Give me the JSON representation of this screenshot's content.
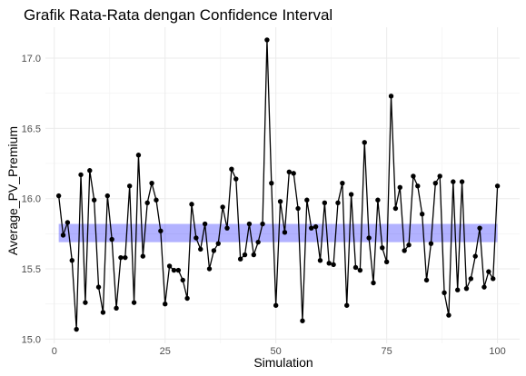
{
  "chart_data": {
    "type": "line",
    "title": "Grafik Rata-Rata dengan Confidence Interval",
    "xlabel": "Simulation",
    "ylabel": "Average_PV_Premium",
    "xlim": [
      -2,
      105
    ],
    "ylim": [
      14.97,
      17.22
    ],
    "x_ticks": [
      0,
      25,
      50,
      75,
      100
    ],
    "x_tick_labels": [
      "0",
      "25",
      "50",
      "75",
      "100"
    ],
    "y_ticks": [
      15.0,
      15.5,
      16.0,
      16.5,
      17.0
    ],
    "y_tick_labels": [
      "15.0",
      "15.5",
      "16.0",
      "16.5",
      "17.0"
    ],
    "grid": true,
    "confidence_interval": {
      "x_start": 1,
      "x_end": 100,
      "lower": 15.69,
      "upper": 15.82,
      "color": "#0000ff",
      "opacity": 0.3
    },
    "line_color": "#000000",
    "point_color": "#000000",
    "series": [
      {
        "x": [
          1,
          2,
          3,
          4,
          5,
          6,
          7,
          8,
          9,
          10,
          11,
          12,
          13,
          14,
          15,
          16,
          17,
          18,
          19,
          20,
          21,
          22,
          23,
          24,
          25,
          26,
          27,
          28,
          29,
          30,
          31,
          32,
          33,
          34,
          35,
          36,
          37,
          38,
          39,
          40,
          41,
          42,
          43,
          44,
          45,
          46,
          47,
          48,
          49,
          50,
          51,
          52,
          53,
          54,
          55,
          56,
          57,
          58,
          59,
          60,
          61,
          62,
          63,
          64,
          65,
          66,
          67,
          68,
          69,
          70,
          71,
          72,
          73,
          74,
          75,
          76,
          77,
          78,
          79,
          80,
          81,
          82,
          83,
          84,
          85,
          86,
          87,
          88,
          89,
          90,
          91,
          92,
          93,
          94,
          95,
          96,
          97,
          98,
          99,
          100
        ],
        "values": [
          16.02,
          15.74,
          15.83,
          15.56,
          15.07,
          16.17,
          15.26,
          16.2,
          15.99,
          15.37,
          15.19,
          16.02,
          15.71,
          15.22,
          15.58,
          15.58,
          16.09,
          15.26,
          16.31,
          15.59,
          15.97,
          16.11,
          15.99,
          15.77,
          15.25,
          15.52,
          15.49,
          15.49,
          15.42,
          15.29,
          15.96,
          15.72,
          15.64,
          15.82,
          15.5,
          15.63,
          15.68,
          15.94,
          15.79,
          16.21,
          16.14,
          15.57,
          15.6,
          15.82,
          15.6,
          15.69,
          15.82,
          17.13,
          16.11,
          15.24,
          15.98,
          15.76,
          16.19,
          16.18,
          15.93,
          15.13,
          15.99,
          15.79,
          15.8,
          15.56,
          15.97,
          15.54,
          15.53,
          15.97,
          16.11,
          15.24,
          16.03,
          15.51,
          15.49,
          16.4,
          15.72,
          15.4,
          15.99,
          15.65,
          15.55,
          16.73,
          15.93,
          16.08,
          15.63,
          15.67,
          16.16,
          16.09,
          15.89,
          15.42,
          15.68,
          16.11,
          16.16,
          15.33,
          15.17,
          16.12,
          15.35,
          16.12,
          15.36,
          15.43,
          15.59,
          15.79,
          15.37,
          15.48,
          15.43,
          16.09
        ]
      }
    ]
  }
}
